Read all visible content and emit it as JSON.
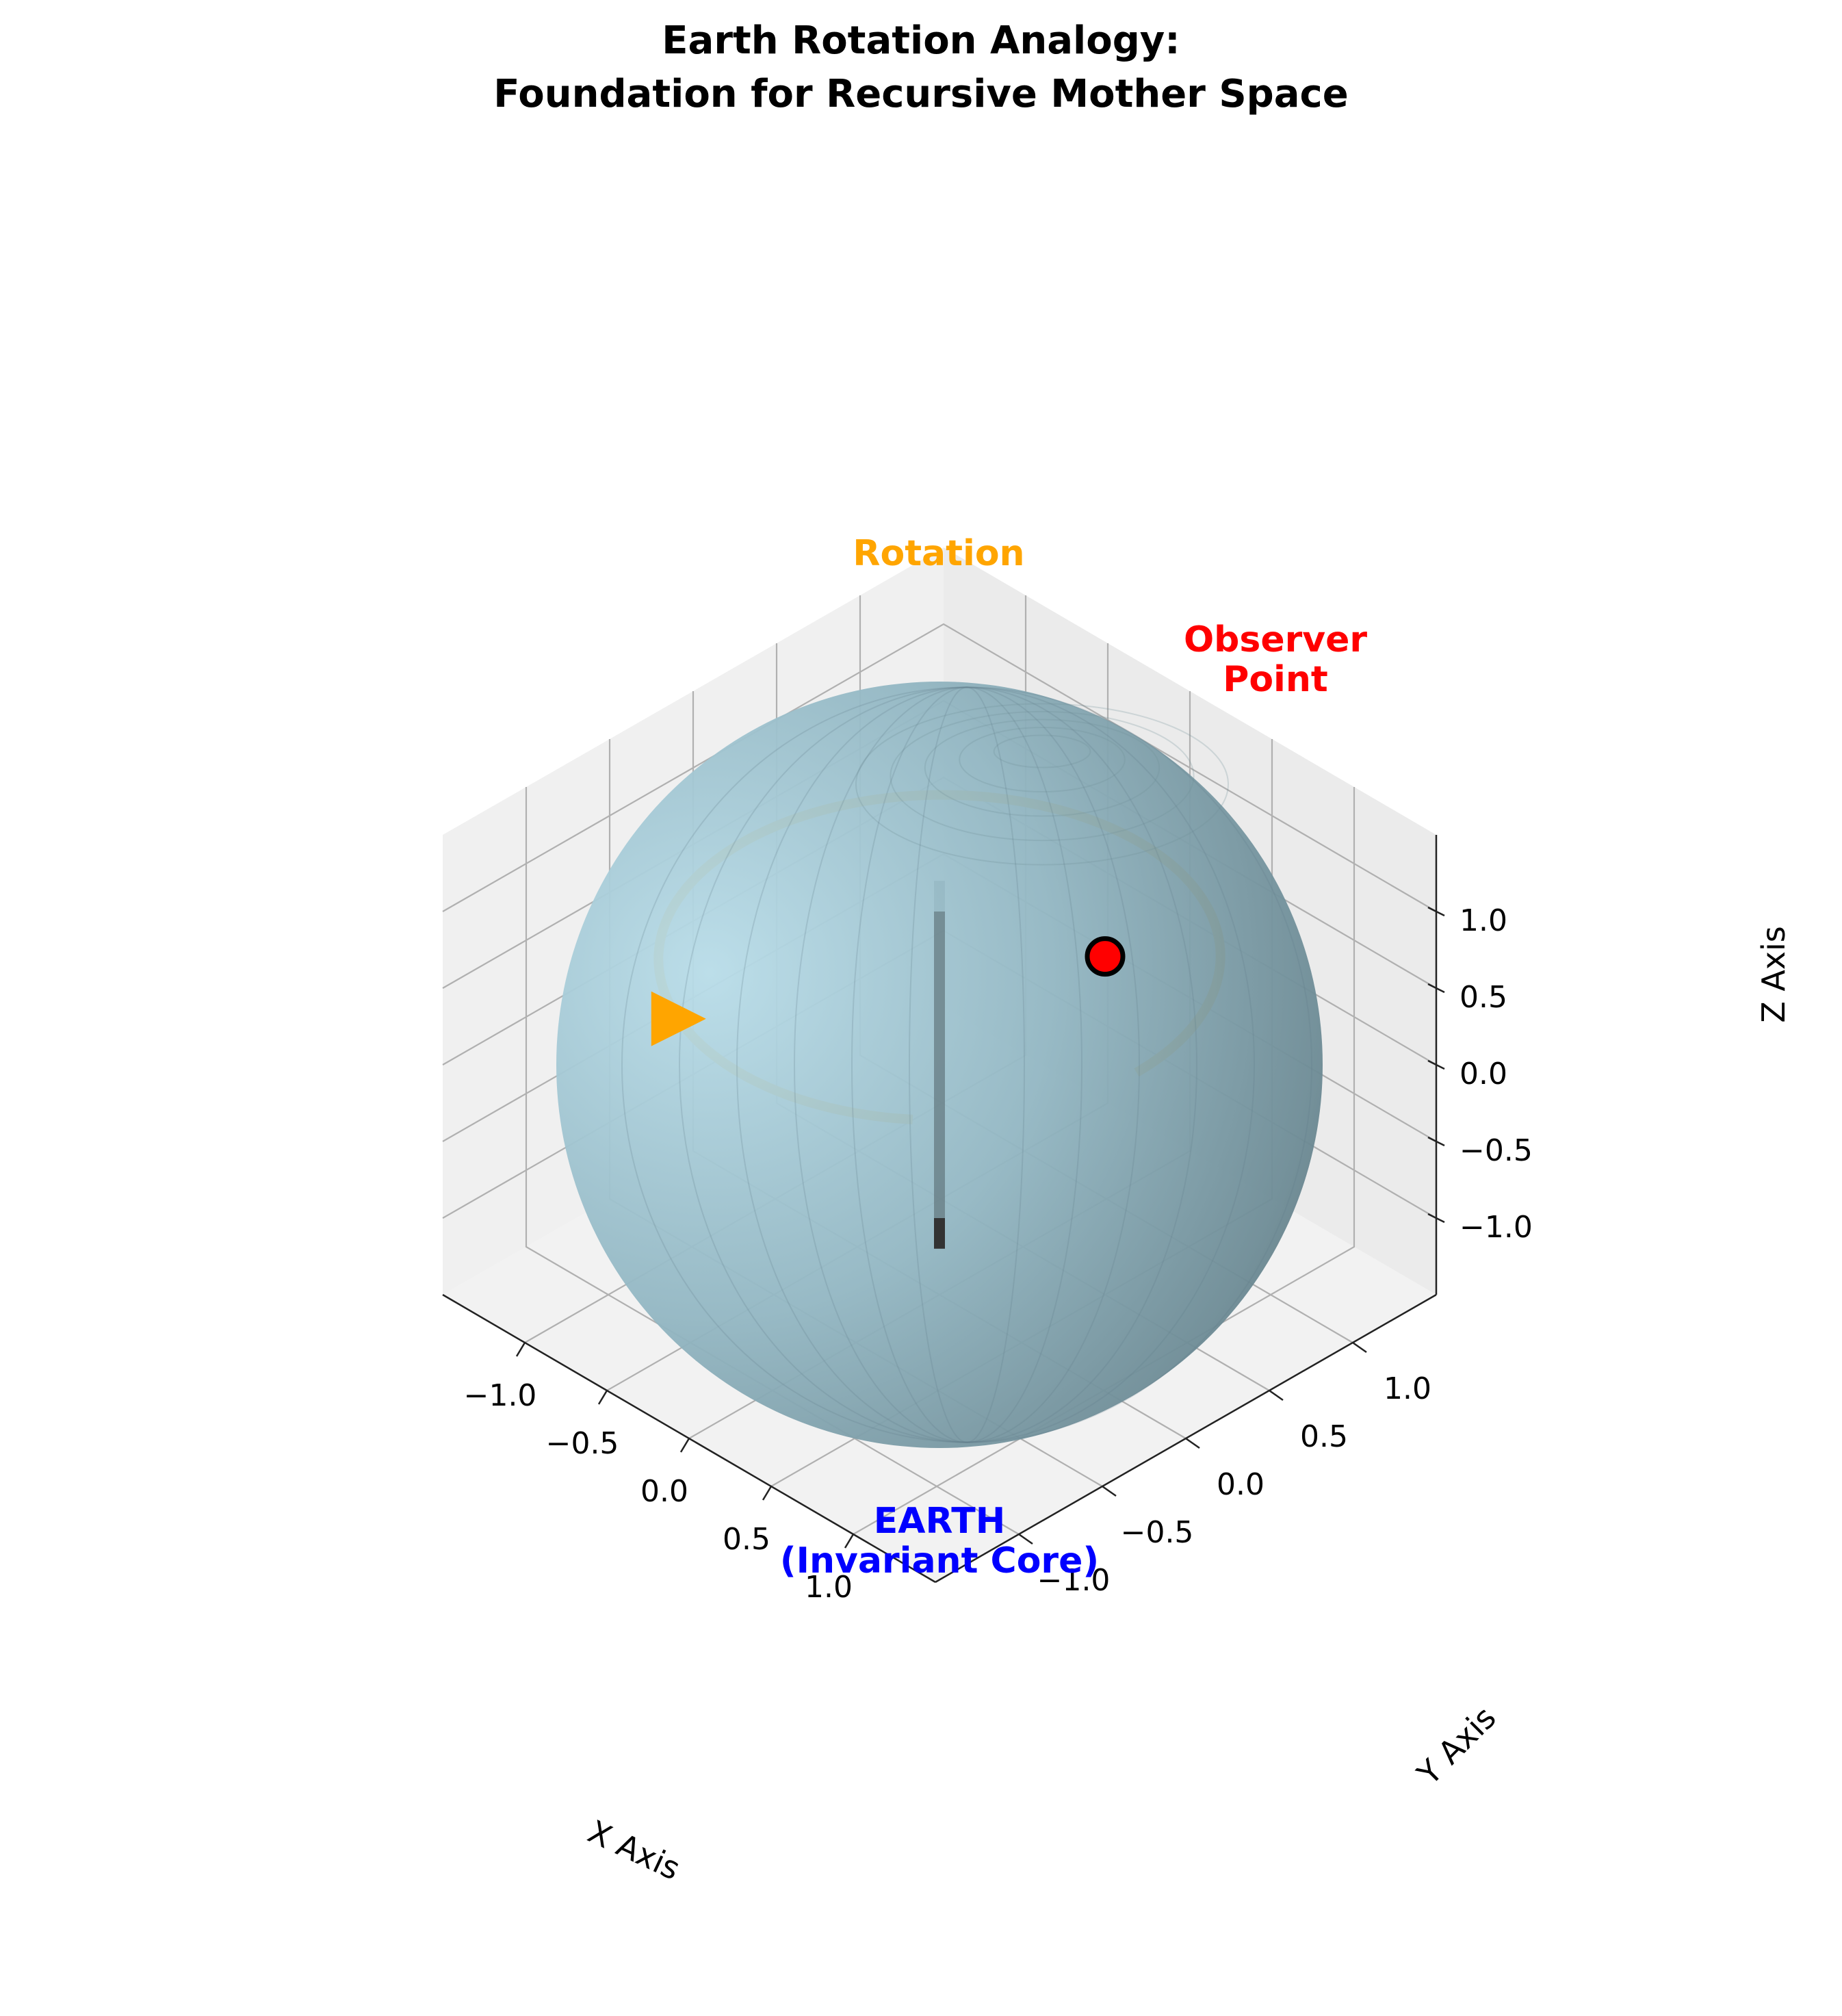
{
  "chart_data": {
    "type": "3d-surface",
    "title": "Earth Rotation Analogy:\nFoundation for Recursive Mother Space",
    "title_lines": [
      "Earth Rotation Analogy:",
      "Foundation for Recursive Mother Space"
    ],
    "xlabel": "X Axis",
    "ylabel": "Y Axis",
    "zlabel": "Z Axis",
    "xlim": [
      -1.5,
      1.5
    ],
    "ylim": [
      -1.5,
      1.5
    ],
    "zlim": [
      -1.5,
      1.5
    ],
    "xticks": [
      "−1.0",
      "−0.5",
      "0.0",
      "0.5",
      "1.0"
    ],
    "yticks": [
      "−1.0",
      "−0.5",
      "0.0",
      "0.5",
      "1.0"
    ],
    "zticks": [
      "−1.0",
      "−0.5",
      "0.0",
      "0.5",
      "1.0"
    ],
    "tick_values": [
      -1.0,
      -0.5,
      0.0,
      0.5,
      1.0
    ],
    "grid": true,
    "view": {
      "elev": 30,
      "azim": -60
    },
    "sphere": {
      "center": [
        0,
        0,
        0
      ],
      "radius": 1.0,
      "color": "#add8e6",
      "alpha": 0.8
    },
    "axis_line": {
      "x": 0,
      "y": 0,
      "z_range": [
        -1.2,
        1.2
      ],
      "color": "#333333"
    },
    "rotation_path": {
      "radius": 1.2,
      "z": 0.7,
      "angle_range_deg": [
        0,
        310
      ],
      "color": "#ffa500"
    },
    "rotation_arrow": {
      "position": [
        -0.8,
        -0.8,
        0.3
      ],
      "color": "#ffa500"
    },
    "observer_point": {
      "position": [
        0.5,
        0.5,
        0.707
      ],
      "color": "#ff0000"
    },
    "annotations": {
      "rotation": {
        "lines": [
          "Rotation"
        ],
        "color": "#ffa500"
      },
      "observer": {
        "lines": [
          "Observer",
          "Point"
        ],
        "color": "#ff0000"
      },
      "earth": {
        "lines": [
          "EARTH",
          "(Invariant Core)"
        ],
        "color": "#0000ff"
      }
    }
  }
}
